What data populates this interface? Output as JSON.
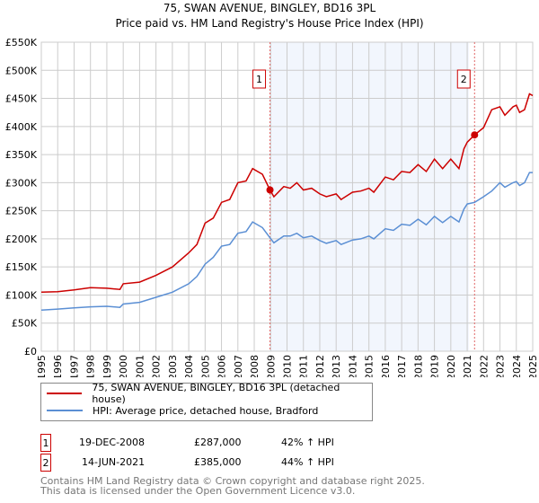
{
  "chart_data": {
    "type": "line",
    "title": "75, SWAN AVENUE, BINGLEY, BD16 3PL",
    "subtitle": "Price paid vs. HM Land Registry's House Price Index (HPI)",
    "xlabel": "",
    "ylabel": "",
    "xlim": [
      1995,
      2025
    ],
    "ylim": [
      0,
      550000
    ],
    "grid": true,
    "x_ticks": [
      "1995",
      "1996",
      "1997",
      "1998",
      "1999",
      "2000",
      "2001",
      "2002",
      "2003",
      "2004",
      "2005",
      "2006",
      "2007",
      "2008",
      "2009",
      "2010",
      "2011",
      "2012",
      "2013",
      "2014",
      "2015",
      "2016",
      "2017",
      "2018",
      "2019",
      "2020",
      "2021",
      "2022",
      "2023",
      "2024",
      "2025"
    ],
    "y_ticks": [
      {
        "value": 0,
        "label": "£0"
      },
      {
        "value": 50000,
        "label": "£50K"
      },
      {
        "value": 100000,
        "label": "£100K"
      },
      {
        "value": 150000,
        "label": "£150K"
      },
      {
        "value": 200000,
        "label": "£200K"
      },
      {
        "value": 250000,
        "label": "£250K"
      },
      {
        "value": 300000,
        "label": "£300K"
      },
      {
        "value": 350000,
        "label": "£350K"
      },
      {
        "value": 400000,
        "label": "£400K"
      },
      {
        "value": 450000,
        "label": "£450K"
      },
      {
        "value": 500000,
        "label": "£500K"
      },
      {
        "value": 550000,
        "label": "£550K"
      }
    ],
    "shaded_range": [
      2008.96,
      2021.1
    ],
    "x": [
      1995,
      1996,
      1997,
      1998,
      1999,
      1999.8,
      2000,
      2001,
      2002,
      2003,
      2004,
      2004.5,
      2005,
      2005.5,
      2006,
      2006.5,
      2007,
      2007.5,
      2007.9,
      2008.5,
      2008.96,
      2009.2,
      2009.8,
      2010.2,
      2010.6,
      2011,
      2011.5,
      2012,
      2012.4,
      2013,
      2013.3,
      2014,
      2014.5,
      2015,
      2015.3,
      2016,
      2016.5,
      2017,
      2017.5,
      2018,
      2018.5,
      2019,
      2019.5,
      2020,
      2020.5,
      2020.8,
      2021,
      2021.45,
      2022,
      2022.5,
      2023,
      2023.3,
      2023.8,
      2024,
      2024.2,
      2024.5,
      2024.8,
      2025
    ],
    "series": [
      {
        "name": "75, SWAN AVENUE, BINGLEY, BD16 3PL (detached house)",
        "color": "#cc0000",
        "values": [
          105000,
          106000,
          109000,
          113000,
          112000,
          110000,
          120000,
          123000,
          135000,
          150000,
          175000,
          190000,
          228000,
          237000,
          265000,
          270000,
          300000,
          303000,
          325000,
          315000,
          287000,
          275000,
          293000,
          290000,
          300000,
          287000,
          290000,
          280000,
          275000,
          280000,
          270000,
          283000,
          285000,
          290000,
          283000,
          310000,
          305000,
          320000,
          318000,
          332000,
          320000,
          342000,
          325000,
          342000,
          325000,
          360000,
          372000,
          385000,
          398000,
          430000,
          435000,
          420000,
          435000,
          438000,
          425000,
          430000,
          458000,
          455000
        ]
      },
      {
        "name": "HPI: Average price, detached house, Bradford",
        "color": "#5b8fd4",
        "values": [
          73000,
          75000,
          77000,
          79000,
          80000,
          78000,
          84000,
          87000,
          96000,
          105000,
          120000,
          133000,
          155000,
          167000,
          187000,
          190000,
          210000,
          213000,
          230000,
          220000,
          202000,
          193000,
          205000,
          205000,
          210000,
          202000,
          205000,
          197000,
          192000,
          197000,
          190000,
          198000,
          200000,
          205000,
          200000,
          218000,
          215000,
          226000,
          224000,
          235000,
          225000,
          240000,
          229000,
          240000,
          230000,
          253000,
          262000,
          265000,
          275000,
          285000,
          300000,
          292000,
          300000,
          302000,
          295000,
          300000,
          318000,
          318000
        ]
      }
    ],
    "annotations": [
      {
        "label": "1",
        "x": 2008.96,
        "value": 287000
      },
      {
        "label": "2",
        "x": 2021.45,
        "value": 385000
      }
    ]
  },
  "legend": {
    "property": "75, SWAN AVENUE, BINGLEY, BD16 3PL (detached house)",
    "hpi": "HPI: Average price, detached house, Bradford"
  },
  "sales": [
    {
      "num": "1",
      "date": "19-DEC-2008",
      "price": "£287,000",
      "hpi": "42% ↑ HPI"
    },
    {
      "num": "2",
      "date": "14-JUN-2021",
      "price": "£385,000",
      "hpi": "44% ↑ HPI"
    }
  ],
  "footer": {
    "line1": "Contains HM Land Registry data © Crown copyright and database right 2025.",
    "line2": "This data is licensed under the Open Government Licence v3.0."
  }
}
